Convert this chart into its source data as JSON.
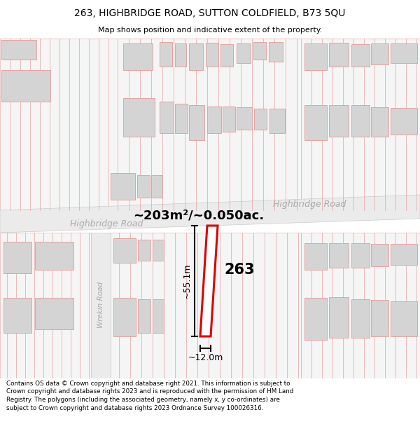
{
  "title_line1": "263, HIGHBRIDGE ROAD, SUTTON COLDFIELD, B73 5QU",
  "title_line2": "Map shows position and indicative extent of the property.",
  "footer_text": "Contains OS data © Crown copyright and database right 2021. This information is subject to Crown copyright and database rights 2023 and is reproduced with the permission of HM Land Registry. The polygons (including the associated geometry, namely x, y co-ordinates) are subject to Crown copyright and database rights 2023 Ordnance Survey 100026316.",
  "area_label": "~203m²/~0.050ac.",
  "width_label": "~12.0m",
  "height_label": "~55.1m",
  "plot_number": "263",
  "road_label_main": "Highbridge Road",
  "road_label_top_right": "Highbridge Road",
  "road_label_wrekin": "Wrekin Road",
  "bg_color": "#ffffff",
  "map_bg": "#ffffff",
  "road_fill": "#ebebeb",
  "building_fill": "#d4d4d4",
  "plot_fill": "#ffffff",
  "plot_outline_color": "#dd0000",
  "map_line_color": "#e8a0a0",
  "map_line_color2": "#ccaaaa",
  "road_border_color": "#cccccc",
  "black_line_color": "#000000",
  "road_label_color": "#aaaaaa",
  "title_fontsize": 10,
  "footer_fontsize": 6.3
}
